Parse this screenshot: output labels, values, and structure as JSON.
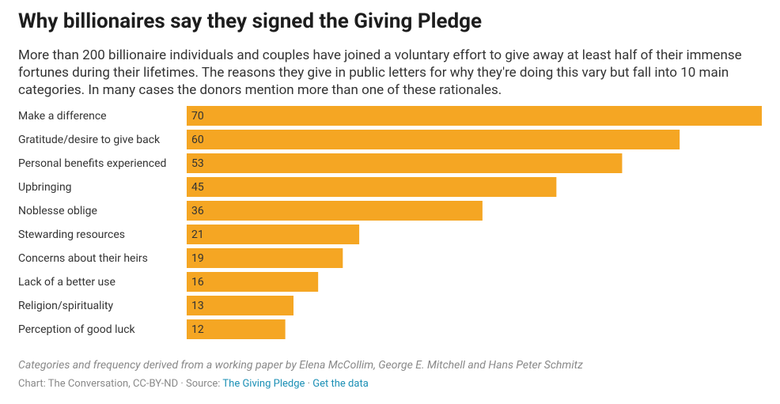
{
  "chart_data": {
    "type": "bar",
    "title": "Why billionaires say they signed the Giving Pledge",
    "subtitle": "More than 200 billionaire individuals and couples have joined a voluntary effort to give away at least half of their immense fortunes during their lifetimes. The reasons they give in public letters for why they're doing this vary but fall into 10 main categories. In many cases the donors mention more than one of these rationales.",
    "categories": [
      "Make a difference",
      "Gratitude/desire to give back",
      "Personal benefits experienced",
      "Upbringing",
      "Noblesse oblige",
      "Stewarding resources",
      "Concerns about their heirs",
      "Lack of a better use",
      "Religion/spirituality",
      "Perception of good luck"
    ],
    "values": [
      70,
      60,
      53,
      45,
      36,
      21,
      19,
      16,
      13,
      12
    ],
    "color": "#f5a623",
    "notes": "Categories and frequency derived from a working paper by Elena McCollim, George E. Mitchell and Hans Peter Schmitz",
    "credit": "Chart: The Conversation, CC-BY-ND",
    "separator": "·",
    "source_label": "Source:",
    "source": "The Giving Pledge",
    "get_data": "Get the data"
  }
}
